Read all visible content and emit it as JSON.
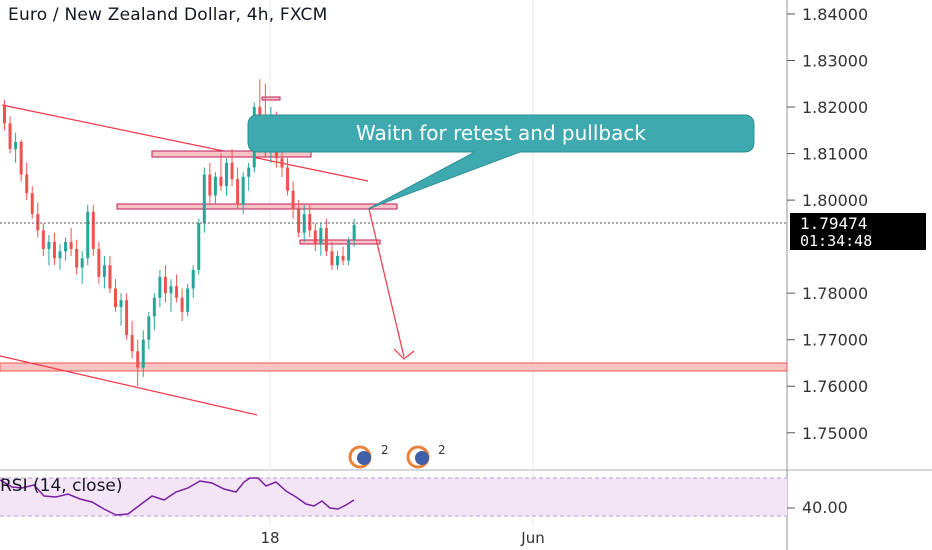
{
  "header": {
    "title": "Euro / New Zealand Dollar, 4h, FXCM"
  },
  "annotation": {
    "text": "Waitn for retest and pullback"
  },
  "price_scale": {
    "labels": [
      "1.84000",
      "1.83000",
      "1.82000",
      "1.81000",
      "1.80000",
      "1.78000",
      "1.77000",
      "1.76000",
      "1.75000"
    ],
    "values": [
      1.84,
      1.83,
      1.82,
      1.81,
      1.8,
      1.78,
      1.77,
      1.76,
      1.75
    ],
    "last_price": "1.79474",
    "countdown": "01:34:48"
  },
  "time_scale": {
    "labels": [
      "18",
      "Jun"
    ]
  },
  "rsi": {
    "label": "RSI (14, close)",
    "level_label": "40.00"
  },
  "event_badges": [
    {
      "count": "2"
    },
    {
      "count": "2"
    }
  ],
  "colors": {
    "bull": "#26a69a",
    "bear": "#ef5350",
    "trendline": "#f23645",
    "callout": "#3fa9b0",
    "rsi_line": "#7b1fa2",
    "rsi_band": "#f3e5f5"
  },
  "chart_data": {
    "type": "candlestick",
    "symbol": "EURNZD",
    "ylim": [
      1.742,
      1.843
    ],
    "last_price": 1.79474,
    "candles": [
      [
        1.8205,
        1.8215,
        1.815,
        1.8165
      ],
      [
        1.8165,
        1.818,
        1.81,
        1.811
      ],
      [
        1.811,
        1.8145,
        1.808,
        1.8125
      ],
      [
        1.8125,
        1.813,
        1.804,
        1.8055
      ],
      [
        1.8055,
        1.808,
        1.8,
        1.8015
      ],
      [
        1.8015,
        1.803,
        1.796,
        1.797
      ],
      [
        1.797,
        1.7995,
        1.792,
        1.7935
      ],
      [
        1.7935,
        1.795,
        1.788,
        1.7895
      ],
      [
        1.7895,
        1.7925,
        1.786,
        1.791
      ],
      [
        1.791,
        1.793,
        1.786,
        1.7875
      ],
      [
        1.7875,
        1.7905,
        1.785,
        1.789
      ],
      [
        1.789,
        1.792,
        1.787,
        1.791
      ],
      [
        1.791,
        1.794,
        1.788,
        1.7895
      ],
      [
        1.7895,
        1.7915,
        1.784,
        1.7855
      ],
      [
        1.7855,
        1.789,
        1.782,
        1.7875
      ],
      [
        1.7875,
        1.799,
        1.786,
        1.7975
      ],
      [
        1.7975,
        1.799,
        1.788,
        1.7895
      ],
      [
        1.7895,
        1.791,
        1.782,
        1.7835
      ],
      [
        1.7835,
        1.788,
        1.781,
        1.786
      ],
      [
        1.786,
        1.788,
        1.78,
        1.781
      ],
      [
        1.781,
        1.783,
        1.776,
        1.777
      ],
      [
        1.777,
        1.78,
        1.773,
        1.7785
      ],
      [
        1.7785,
        1.78,
        1.77,
        1.771
      ],
      [
        1.771,
        1.774,
        1.766,
        1.7675
      ],
      [
        1.7675,
        1.77,
        1.76,
        1.764
      ],
      [
        1.764,
        1.772,
        1.762,
        1.77
      ],
      [
        1.77,
        1.776,
        1.768,
        1.775
      ],
      [
        1.775,
        1.78,
        1.772,
        1.779
      ],
      [
        1.779,
        1.785,
        1.777,
        1.7835
      ],
      [
        1.7835,
        1.786,
        1.778,
        1.78
      ],
      [
        1.78,
        1.783,
        1.776,
        1.7815
      ],
      [
        1.7815,
        1.784,
        1.778,
        1.779
      ],
      [
        1.779,
        1.781,
        1.774,
        1.776
      ],
      [
        1.776,
        1.782,
        1.775,
        1.781
      ],
      [
        1.781,
        1.786,
        1.779,
        1.785
      ],
      [
        1.785,
        1.796,
        1.784,
        1.795
      ],
      [
        1.795,
        1.807,
        1.793,
        1.8055
      ],
      [
        1.8055,
        1.808,
        1.799,
        1.801
      ],
      [
        1.801,
        1.806,
        1.799,
        1.805
      ],
      [
        1.805,
        1.81,
        1.802,
        1.803
      ],
      [
        1.803,
        1.809,
        1.801,
        1.808
      ],
      [
        1.808,
        1.811,
        1.803,
        1.8045
      ],
      [
        1.8045,
        1.807,
        1.798,
        1.799
      ],
      [
        1.799,
        1.806,
        1.797,
        1.805
      ],
      [
        1.805,
        1.808,
        1.802,
        1.807
      ],
      [
        1.807,
        1.821,
        1.806,
        1.82
      ],
      [
        1.82,
        1.826,
        1.815,
        1.818
      ],
      [
        1.818,
        1.825,
        1.809,
        1.811
      ],
      [
        1.811,
        1.82,
        1.808,
        1.817
      ],
      [
        1.817,
        1.819,
        1.807,
        1.809
      ],
      [
        1.809,
        1.812,
        1.805,
        1.807
      ],
      [
        1.807,
        1.809,
        1.801,
        1.802
      ],
      [
        1.802,
        1.804,
        1.796,
        1.798
      ],
      [
        1.798,
        1.8,
        1.792,
        1.793
      ],
      [
        1.793,
        1.799,
        1.791,
        1.797
      ],
      [
        1.797,
        1.799,
        1.792,
        1.7935
      ],
      [
        1.7935,
        1.795,
        1.789,
        1.7905
      ],
      [
        1.7905,
        1.795,
        1.788,
        1.794
      ],
      [
        1.794,
        1.796,
        1.788,
        1.789
      ],
      [
        1.789,
        1.791,
        1.785,
        1.786
      ],
      [
        1.786,
        1.789,
        1.785,
        1.788
      ],
      [
        1.788,
        1.79,
        1.786,
        1.787
      ],
      [
        1.787,
        1.792,
        1.786,
        1.7915
      ],
      [
        1.7915,
        1.796,
        1.79,
        1.7947
      ]
    ]
  }
}
